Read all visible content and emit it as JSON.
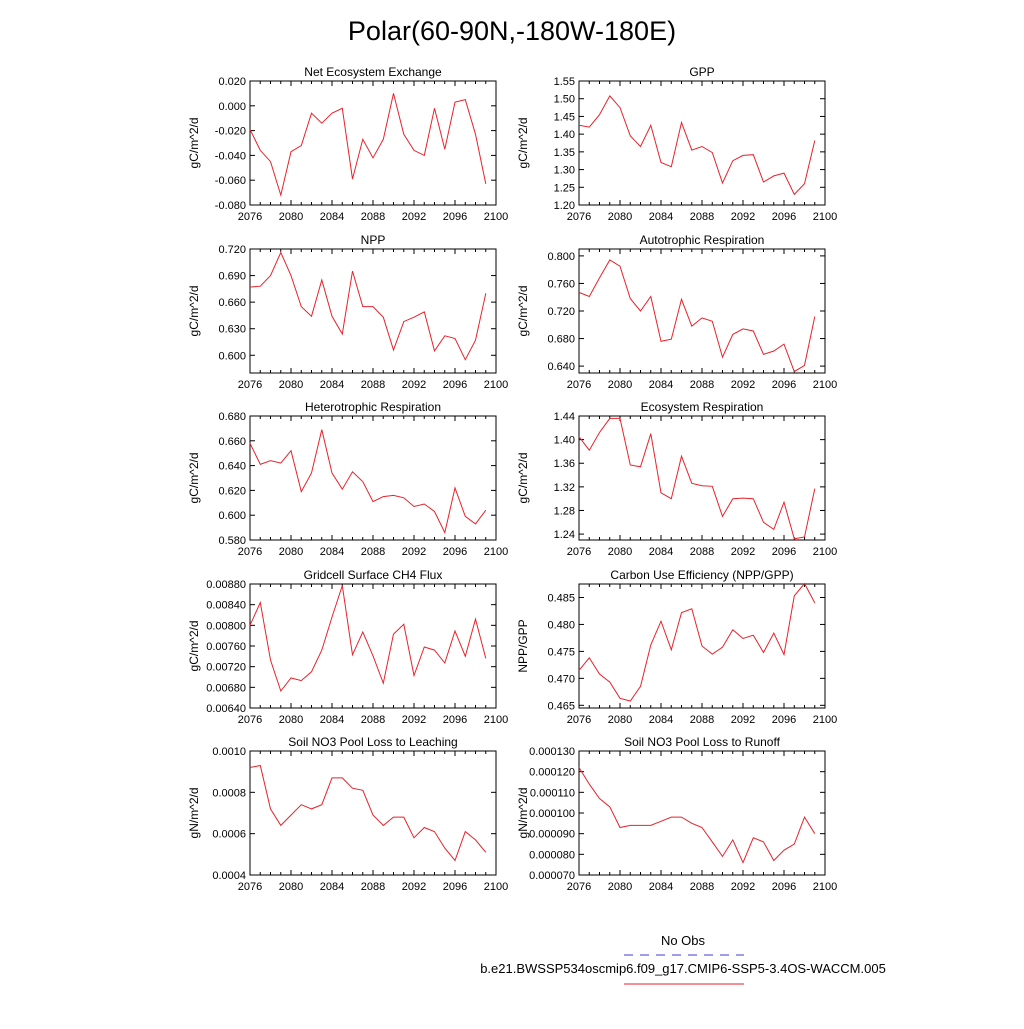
{
  "page": {
    "title": "Polar(60-90N,-180W-180E)",
    "legend": {
      "obs_label": "No Obs",
      "obs_color": "#3b3bd8",
      "case_label": "b.e21.BWSSP534oscmip6.f09_g17.CMIP6-SSP5-3.4OS-WACCM.005",
      "case_color": "#e8222b"
    }
  },
  "chart_data": [
    {
      "type": "line",
      "title": "Net Ecosystem Exchange",
      "xlabel": "",
      "ylabel": "gC/m^2/d",
      "xlim": [
        2076,
        2100
      ],
      "xticks": [
        2076,
        2080,
        2084,
        2088,
        2092,
        2096,
        2100
      ],
      "ylim": [
        -0.08,
        0.02
      ],
      "yticks": [
        -0.08,
        -0.06,
        -0.04,
        -0.02,
        0.0,
        0.02
      ],
      "ytick_labels": [
        "-0.080",
        "-0.060",
        "-0.040",
        "-0.020",
        "0.000",
        "0.020"
      ],
      "series": [
        {
          "name": "b.e21.BWSSP534oscmip6.f09_g17.CMIP6-SSP5-3.4OS-WACCM.005",
          "color": "#e8222b",
          "x": [
            2076,
            2077,
            2078,
            2079,
            2080,
            2081,
            2082,
            2083,
            2084,
            2085,
            2086,
            2087,
            2088,
            2089,
            2090,
            2091,
            2092,
            2093,
            2094,
            2095,
            2096,
            2097,
            2098,
            2099
          ],
          "y": [
            -0.019,
            -0.036,
            -0.045,
            -0.072,
            -0.037,
            -0.032,
            -0.006,
            -0.014,
            -0.006,
            -0.002,
            -0.059,
            -0.027,
            -0.042,
            -0.027,
            0.01,
            -0.023,
            -0.036,
            -0.04,
            -0.002,
            -0.035,
            0.003,
            0.005,
            -0.023,
            -0.063
          ]
        }
      ]
    },
    {
      "type": "line",
      "title": "GPP",
      "xlabel": "",
      "ylabel": "gC/m^2/d",
      "xlim": [
        2076,
        2100
      ],
      "xticks": [
        2076,
        2080,
        2084,
        2088,
        2092,
        2096,
        2100
      ],
      "ylim": [
        1.2,
        1.55
      ],
      "yticks": [
        1.2,
        1.25,
        1.3,
        1.35,
        1.4,
        1.45,
        1.5,
        1.55
      ],
      "ytick_labels": [
        "1.20",
        "1.25",
        "1.30",
        "1.35",
        "1.40",
        "1.45",
        "1.50",
        "1.55"
      ],
      "series": [
        {
          "name": "b.e21.BWSSP534oscmip6.f09_g17.CMIP6-SSP5-3.4OS-WACCM.005",
          "color": "#e8222b",
          "x": [
            2076,
            2077,
            2078,
            2079,
            2080,
            2081,
            2082,
            2083,
            2084,
            2085,
            2086,
            2087,
            2088,
            2089,
            2090,
            2091,
            2092,
            2093,
            2094,
            2095,
            2096,
            2097,
            2098,
            2099
          ],
          "y": [
            1.425,
            1.42,
            1.455,
            1.508,
            1.475,
            1.395,
            1.365,
            1.425,
            1.32,
            1.308,
            1.433,
            1.355,
            1.365,
            1.348,
            1.262,
            1.325,
            1.34,
            1.342,
            1.265,
            1.282,
            1.29,
            1.23,
            1.26,
            1.382
          ]
        }
      ]
    },
    {
      "type": "line",
      "title": "NPP",
      "xlabel": "",
      "ylabel": "gC/m^2/d",
      "xlim": [
        2076,
        2100
      ],
      "xticks": [
        2076,
        2080,
        2084,
        2088,
        2092,
        2096,
        2100
      ],
      "ylim": [
        0.58,
        0.72
      ],
      "yticks": [
        0.6,
        0.63,
        0.66,
        0.69,
        0.72
      ],
      "ytick_labels": [
        "0.600",
        "0.630",
        "0.660",
        "0.690",
        "0.720"
      ],
      "series": [
        {
          "name": "b.e21.BWSSP534oscmip6.f09_g17.CMIP6-SSP5-3.4OS-WACCM.005",
          "color": "#e8222b",
          "x": [
            2076,
            2077,
            2078,
            2079,
            2080,
            2081,
            2082,
            2083,
            2084,
            2085,
            2086,
            2087,
            2088,
            2089,
            2090,
            2091,
            2092,
            2093,
            2094,
            2095,
            2096,
            2097,
            2098,
            2099
          ],
          "y": [
            0.677,
            0.678,
            0.69,
            0.716,
            0.69,
            0.655,
            0.644,
            0.685,
            0.644,
            0.624,
            0.695,
            0.655,
            0.655,
            0.643,
            0.606,
            0.638,
            0.643,
            0.649,
            0.605,
            0.622,
            0.619,
            0.595,
            0.617,
            0.67
          ]
        }
      ]
    },
    {
      "type": "line",
      "title": "Autotrophic Respiration",
      "xlabel": "",
      "ylabel": "gC/m^2/d",
      "xlim": [
        2076,
        2100
      ],
      "xticks": [
        2076,
        2080,
        2084,
        2088,
        2092,
        2096,
        2100
      ],
      "ylim": [
        0.63,
        0.81
      ],
      "yticks": [
        0.64,
        0.68,
        0.72,
        0.76,
        0.8
      ],
      "ytick_labels": [
        "0.640",
        "0.680",
        "0.720",
        "0.760",
        "0.800"
      ],
      "series": [
        {
          "name": "b.e21.BWSSP534oscmip6.f09_g17.CMIP6-SSP5-3.4OS-WACCM.005",
          "color": "#e8222b",
          "x": [
            2076,
            2077,
            2078,
            2079,
            2080,
            2081,
            2082,
            2083,
            2084,
            2085,
            2086,
            2087,
            2088,
            2089,
            2090,
            2091,
            2092,
            2093,
            2094,
            2095,
            2096,
            2097,
            2098,
            2099
          ],
          "y": [
            0.747,
            0.741,
            0.768,
            0.794,
            0.785,
            0.738,
            0.72,
            0.741,
            0.676,
            0.679,
            0.737,
            0.698,
            0.71,
            0.705,
            0.653,
            0.686,
            0.694,
            0.691,
            0.657,
            0.662,
            0.672,
            0.632,
            0.641,
            0.712
          ]
        }
      ]
    },
    {
      "type": "line",
      "title": "Heterotrophic Respiration",
      "xlabel": "",
      "ylabel": "gC/m^2/d",
      "xlim": [
        2076,
        2100
      ],
      "xticks": [
        2076,
        2080,
        2084,
        2088,
        2092,
        2096,
        2100
      ],
      "ylim": [
        0.58,
        0.68
      ],
      "yticks": [
        0.58,
        0.6,
        0.62,
        0.64,
        0.66,
        0.68
      ],
      "ytick_labels": [
        "0.580",
        "0.600",
        "0.620",
        "0.640",
        "0.660",
        "0.680"
      ],
      "series": [
        {
          "name": "b.e21.BWSSP534oscmip6.f09_g17.CMIP6-SSP5-3.4OS-WACCM.005",
          "color": "#e8222b",
          "x": [
            2076,
            2077,
            2078,
            2079,
            2080,
            2081,
            2082,
            2083,
            2084,
            2085,
            2086,
            2087,
            2088,
            2089,
            2090,
            2091,
            2092,
            2093,
            2094,
            2095,
            2096,
            2097,
            2098,
            2099
          ],
          "y": [
            0.658,
            0.641,
            0.644,
            0.642,
            0.652,
            0.619,
            0.634,
            0.669,
            0.634,
            0.621,
            0.635,
            0.627,
            0.611,
            0.615,
            0.616,
            0.614,
            0.607,
            0.609,
            0.603,
            0.586,
            0.622,
            0.599,
            0.593,
            0.604
          ]
        }
      ]
    },
    {
      "type": "line",
      "title": "Ecosystem Respiration",
      "xlabel": "",
      "ylabel": "gC/m^2/d",
      "xlim": [
        2076,
        2100
      ],
      "xticks": [
        2076,
        2080,
        2084,
        2088,
        2092,
        2096,
        2100
      ],
      "ylim": [
        1.23,
        1.44
      ],
      "yticks": [
        1.24,
        1.28,
        1.32,
        1.36,
        1.4,
        1.44
      ],
      "ytick_labels": [
        "1.24",
        "1.28",
        "1.32",
        "1.36",
        "1.40",
        "1.44"
      ],
      "series": [
        {
          "name": "b.e21.BWSSP534oscmip6.f09_g17.CMIP6-SSP5-3.4OS-WACCM.005",
          "color": "#e8222b",
          "x": [
            2076,
            2077,
            2078,
            2079,
            2080,
            2081,
            2082,
            2083,
            2084,
            2085,
            2086,
            2087,
            2088,
            2089,
            2090,
            2091,
            2092,
            2093,
            2094,
            2095,
            2096,
            2097,
            2098,
            2099
          ],
          "y": [
            1.405,
            1.382,
            1.412,
            1.436,
            1.436,
            1.357,
            1.354,
            1.41,
            1.31,
            1.3,
            1.372,
            1.326,
            1.322,
            1.321,
            1.27,
            1.3,
            1.301,
            1.3,
            1.26,
            1.248,
            1.294,
            1.232,
            1.235,
            1.317
          ]
        }
      ]
    },
    {
      "type": "line",
      "title": "Gridcell Surface CH4 Flux",
      "xlabel": "",
      "ylabel": "gC/m^2/d",
      "xlim": [
        2076,
        2100
      ],
      "xticks": [
        2076,
        2080,
        2084,
        2088,
        2092,
        2096,
        2100
      ],
      "ylim": [
        0.0064,
        0.0088
      ],
      "yticks": [
        0.0064,
        0.0068,
        0.0072,
        0.0076,
        0.008,
        0.0084,
        0.0088
      ],
      "ytick_labels": [
        "0.00640",
        "0.00680",
        "0.00720",
        "0.00760",
        "0.00800",
        "0.00840",
        "0.00880"
      ],
      "series": [
        {
          "name": "b.e21.BWSSP534oscmip6.f09_g17.CMIP6-SSP5-3.4OS-WACCM.005",
          "color": "#e8222b",
          "x": [
            2076,
            2077,
            2078,
            2079,
            2080,
            2081,
            2082,
            2083,
            2084,
            2085,
            2086,
            2087,
            2088,
            2089,
            2090,
            2091,
            2092,
            2093,
            2094,
            2095,
            2096,
            2097,
            2098,
            2099
          ],
          "y": [
            0.008,
            0.00844,
            0.00733,
            0.00673,
            0.00698,
            0.00693,
            0.0071,
            0.00752,
            0.00816,
            0.00877,
            0.00743,
            0.00787,
            0.00741,
            0.00688,
            0.00783,
            0.00802,
            0.00703,
            0.00758,
            0.00752,
            0.00727,
            0.00789,
            0.0074,
            0.00812,
            0.00736
          ]
        }
      ]
    },
    {
      "type": "line",
      "title": "Carbon Use Efficiency (NPP/GPP)",
      "xlabel": "",
      "ylabel": "NPP/GPP",
      "xlim": [
        2076,
        2100
      ],
      "xticks": [
        2076,
        2080,
        2084,
        2088,
        2092,
        2096,
        2100
      ],
      "ylim": [
        0.4645,
        0.4875
      ],
      "yticks": [
        0.465,
        0.47,
        0.475,
        0.48,
        0.485
      ],
      "ytick_labels": [
        "0.465",
        "0.470",
        "0.475",
        "0.480",
        "0.485"
      ],
      "series": [
        {
          "name": "b.e21.BWSSP534oscmip6.f09_g17.CMIP6-SSP5-3.4OS-WACCM.005",
          "color": "#e8222b",
          "x": [
            2076,
            2077,
            2078,
            2079,
            2080,
            2081,
            2082,
            2083,
            2084,
            2085,
            2086,
            2087,
            2088,
            2089,
            2090,
            2091,
            2092,
            2093,
            2094,
            2095,
            2096,
            2097,
            2098,
            2099
          ],
          "y": [
            0.4715,
            0.4738,
            0.4708,
            0.4693,
            0.4663,
            0.4658,
            0.4685,
            0.4762,
            0.4806,
            0.4753,
            0.4822,
            0.4829,
            0.476,
            0.4745,
            0.4758,
            0.479,
            0.4774,
            0.478,
            0.4748,
            0.4784,
            0.4744,
            0.4853,
            0.4876,
            0.484
          ]
        }
      ]
    },
    {
      "type": "line",
      "title": "Soil NO3 Pool Loss to Leaching",
      "xlabel": "",
      "ylabel": "gN/m^2/d",
      "xlim": [
        2076,
        2100
      ],
      "xticks": [
        2076,
        2080,
        2084,
        2088,
        2092,
        2096,
        2100
      ],
      "ylim": [
        0.0004,
        0.001
      ],
      "yticks": [
        0.0004,
        0.0006,
        0.0008,
        0.001
      ],
      "ytick_labels": [
        "0.0004",
        "0.0006",
        "0.0008",
        "0.0010"
      ],
      "series": [
        {
          "name": "b.e21.BWSSP534oscmip6.f09_g17.CMIP6-SSP5-3.4OS-WACCM.005",
          "color": "#e8222b",
          "x": [
            2076,
            2077,
            2078,
            2079,
            2080,
            2081,
            2082,
            2083,
            2084,
            2085,
            2086,
            2087,
            2088,
            2089,
            2090,
            2091,
            2092,
            2093,
            2094,
            2095,
            2096,
            2097,
            2098,
            2099
          ],
          "y": [
            0.00092,
            0.00093,
            0.00072,
            0.00064,
            0.00069,
            0.00074,
            0.00072,
            0.00074,
            0.00087,
            0.00087,
            0.00082,
            0.00081,
            0.00069,
            0.00064,
            0.00068,
            0.00068,
            0.00058,
            0.00063,
            0.00061,
            0.00053,
            0.00047,
            0.00061,
            0.00057,
            0.00051
          ]
        }
      ]
    },
    {
      "type": "line",
      "title": "Soil NO3 Pool Loss to Runoff",
      "xlabel": "",
      "ylabel": "gN/m^2/d",
      "xlim": [
        2076,
        2100
      ],
      "xticks": [
        2076,
        2080,
        2084,
        2088,
        2092,
        2096,
        2100
      ],
      "ylim": [
        7e-05,
        0.00013
      ],
      "yticks": [
        7e-05,
        8e-05,
        9e-05,
        0.0001,
        0.00011,
        0.00012,
        0.00013
      ],
      "ytick_labels": [
        "0.000070",
        "0.000080",
        "0.000090",
        "0.000100",
        "0.000110",
        "0.000120",
        "0.000130"
      ],
      "series": [
        {
          "name": "b.e21.BWSSP534oscmip6.f09_g17.CMIP6-SSP5-3.4OS-WACCM.005",
          "color": "#e8222b",
          "x": [
            2076,
            2077,
            2078,
            2079,
            2080,
            2081,
            2082,
            2083,
            2084,
            2085,
            2086,
            2087,
            2088,
            2089,
            2090,
            2091,
            2092,
            2093,
            2094,
            2095,
            2096,
            2097,
            2098,
            2099
          ],
          "y": [
            0.000122,
            0.000114,
            0.000107,
            0.000103,
            9.3e-05,
            9.4e-05,
            9.4e-05,
            9.4e-05,
            9.6e-05,
            9.8e-05,
            9.8e-05,
            9.5e-05,
            9.3e-05,
            8.6e-05,
            7.9e-05,
            8.7e-05,
            7.6e-05,
            8.8e-05,
            8.6e-05,
            7.7e-05,
            8.2e-05,
            8.5e-05,
            9.8e-05,
            9e-05
          ]
        }
      ]
    }
  ]
}
